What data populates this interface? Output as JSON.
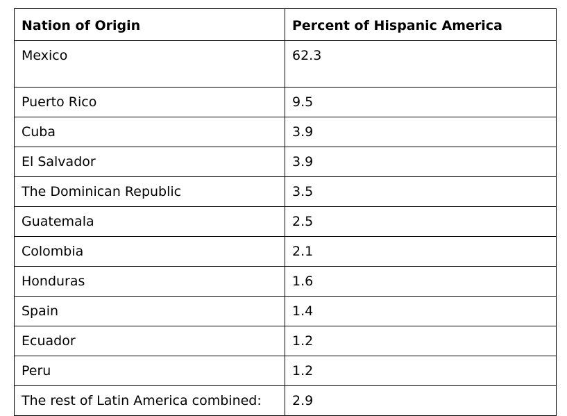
{
  "table": {
    "headers": [
      "Nation of Origin",
      "Percent of Hispanic America"
    ],
    "rows": [
      {
        "nation": "Mexico",
        "percent": "62.3"
      },
      {
        "nation": "Puerto Rico",
        "percent": "9.5"
      },
      {
        "nation": "Cuba",
        "percent": "3.9"
      },
      {
        "nation": "El Salvador",
        "percent": "3.9"
      },
      {
        "nation": "The Dominican Republic",
        "percent": "3.5"
      },
      {
        "nation": "Guatemala",
        "percent": "2.5"
      },
      {
        "nation": "Colombia",
        "percent": "2.1"
      },
      {
        "nation": "Honduras",
        "percent": "1.6"
      },
      {
        "nation": "Spain",
        "percent": "1.4"
      },
      {
        "nation": "Ecuador",
        "percent": "1.2"
      },
      {
        "nation": "Peru",
        "percent": "1.2"
      },
      {
        "nation": "The rest of Latin America combined:",
        "percent": "2.9"
      }
    ]
  }
}
